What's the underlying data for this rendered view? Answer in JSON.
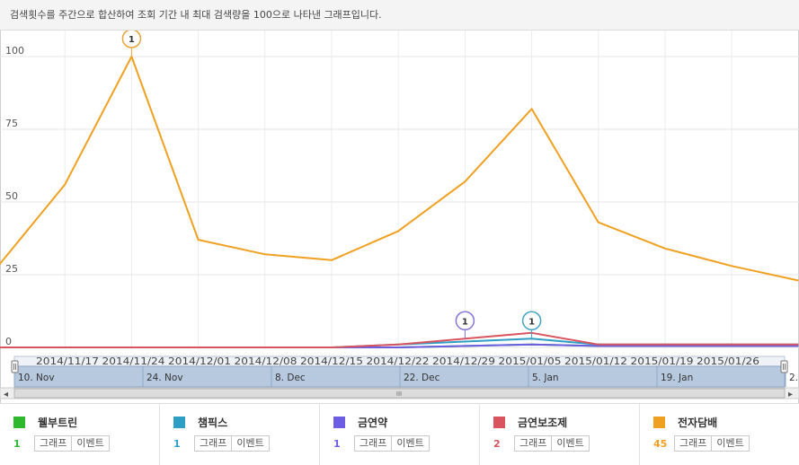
{
  "notice": "검색횟수를 주간으로 합산하여 조회 기간 내 최대 검색량을 100으로 나타낸 그래프입니다.",
  "chart_data": {
    "type": "line",
    "x": [
      "2014/11/10",
      "2014/11/17",
      "2014/11/24",
      "2014/12/01",
      "2014/12/08",
      "2014/12/15",
      "2014/12/22",
      "2014/12/29",
      "2015/01/05",
      "2015/01/12",
      "2015/01/19",
      "2015/01/26",
      "2015/02/02"
    ],
    "ylim": [
      0,
      110
    ],
    "yticks": [
      "0",
      "25",
      "50",
      "75",
      "100"
    ],
    "grid": true,
    "series": [
      {
        "name": "웰부트린",
        "color": "#2eb82e",
        "values": [
          0,
          0,
          0,
          0,
          0,
          0,
          0,
          0.5,
          1,
          0.5,
          0.5,
          0.5,
          0.5
        ]
      },
      {
        "name": "챔픽스",
        "color": "#2e9fc4",
        "values": [
          0,
          0,
          0,
          0,
          0,
          0,
          1,
          2,
          3,
          1,
          1,
          1,
          1
        ]
      },
      {
        "name": "금연약",
        "color": "#6d5de3",
        "values": [
          0,
          0,
          0,
          0,
          0,
          0,
          0,
          0.5,
          1,
          0.5,
          0.5,
          0.5,
          0.5
        ]
      },
      {
        "name": "금연보조제",
        "color": "#d9545e",
        "values": [
          0,
          0,
          0,
          0,
          0,
          0,
          1,
          3,
          5,
          1,
          1,
          1,
          1
        ]
      },
      {
        "name": "전자담배",
        "color": "#f0a020",
        "values": [
          28,
          56,
          100,
          37,
          32,
          30,
          40,
          57,
          82,
          43,
          34,
          28,
          23
        ]
      }
    ],
    "annotations": [
      {
        "label": "1",
        "series": 4,
        "index": 2,
        "color": "#e8a437"
      },
      {
        "label": "1",
        "series": 3,
        "index": 7,
        "color": "#8476d8"
      },
      {
        "label": "1",
        "series": 1,
        "index": 8,
        "color": "#42a4c5"
      }
    ],
    "navigator": {
      "top_labels": [
        "2014/11/17",
        "2014/11/24",
        "2014/12/01",
        "2014/12/08",
        "2014/12/15",
        "2014/12/22",
        "2014/12/29",
        "2015/01/05",
        "2015/01/12",
        "2015/01/19",
        "2015/01/26"
      ],
      "bottom_labels": [
        "10. Nov",
        "24. Nov",
        "8. Dec",
        "22. Dec",
        "5. Jan",
        "19. Jan",
        "2."
      ]
    }
  },
  "legend": [
    {
      "name": "웰부트린",
      "color": "#2eb82e",
      "count": "1",
      "graph_label": "그래프",
      "event_label": "이벤트"
    },
    {
      "name": "챔픽스",
      "color": "#2e9fc4",
      "count": "1",
      "graph_label": "그래프",
      "event_label": "이벤트"
    },
    {
      "name": "금연약",
      "color": "#6d5de3",
      "count": "1",
      "graph_label": "그래프",
      "event_label": "이벤트"
    },
    {
      "name": "금연보조제",
      "color": "#d9545e",
      "count": "2",
      "graph_label": "그래프",
      "event_label": "이벤트"
    },
    {
      "name": "전자담배",
      "color": "#f0a020",
      "count": "45",
      "graph_label": "그래프",
      "event_label": "이벤트"
    }
  ],
  "scrollbar": {
    "left_arrow": "◂",
    "right_arrow": "▸",
    "grip": "III"
  }
}
